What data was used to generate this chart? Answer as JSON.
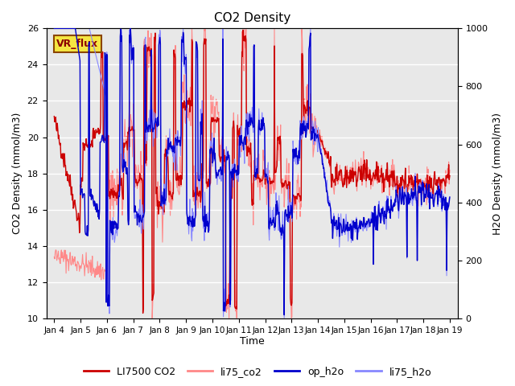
{
  "title": "CO2 Density",
  "xlabel": "Time",
  "ylabel_left": "CO2 Density (mmol/m3)",
  "ylabel_right": "H2O Density (mmol/m3)",
  "ylim_left": [
    10,
    26
  ],
  "ylim_right": [
    0,
    1000
  ],
  "xtick_labels": [
    "Jan 4",
    "Jan 5",
    "Jan 6",
    "Jan 7",
    "Jan 8",
    "Jan 9",
    "Jan 10",
    "Jan 11",
    "Jan 12",
    "Jan 13",
    "Jan 14",
    "Jan 15",
    "Jan 16",
    "Jan 17",
    "Jan 18",
    "Jan 19"
  ],
  "legend_entries": [
    "LI7500 CO2",
    "li75_co2",
    "op_h2o",
    "li75_h2o"
  ],
  "colors": {
    "LI7500_CO2": "#cc0000",
    "li75_co2": "#ff8888",
    "op_h2o": "#0000cc",
    "li75_h2o": "#8888ff"
  },
  "vr_flux_label": "VR_flux",
  "bg_color": "#e8e8e8",
  "figsize": [
    6.4,
    4.8
  ],
  "dpi": 100
}
